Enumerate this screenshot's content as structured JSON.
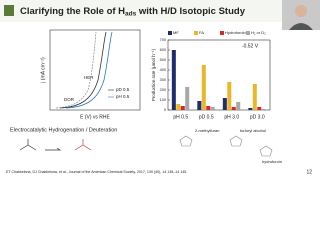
{
  "header": {
    "title_parts": [
      "Clarifying the Role of H",
      "ads",
      " with H/D Isotopic Study"
    ]
  },
  "left_plot": {
    "y_label": "j (mA cm⁻²)",
    "x_label": "E (V) vs RHE",
    "curve_labels": [
      "HER",
      "DOR"
    ],
    "legend": [
      "pD 0.5",
      "pH 0.5"
    ]
  },
  "bar_chart": {
    "type": "bar",
    "y_label": "Production rate (μmol h⁻¹)",
    "annotation": "-0.52 V",
    "categories": [
      "pH 0.5",
      "pD 0.5",
      "pH 3.0",
      "pD 3.0"
    ],
    "series": [
      {
        "name": "MF",
        "color": "#1f2d6e",
        "values": [
          600,
          90,
          120,
          20
        ]
      },
      {
        "name": "FA",
        "color": "#e8b82a",
        "values": [
          60,
          450,
          280,
          260
        ]
      },
      {
        "name": "Hydrofuroin",
        "color": "#d62a2a",
        "values": [
          40,
          40,
          30,
          30
        ]
      },
      {
        "name": "H₂ or D₂",
        "color": "#a8a8a8",
        "values": [
          230,
          30,
          80,
          10
        ]
      }
    ],
    "ylim": [
      0,
      700
    ],
    "yticks": [
      0,
      100,
      200,
      300,
      400,
      500,
      600,
      700
    ]
  },
  "scheme": {
    "caption": "Electrocatalytic Hydrogenation / Deuteration",
    "products": [
      "2-methylfuran",
      "furfuryl alcohol",
      "hydrofuroin"
    ]
  },
  "footer": {
    "citation": "ET Chakkelona, DJ Chakkelona, et al., Journal of the American Chemical Society, 2017, 139 (40), 14 138–14 145.",
    "page": "12"
  }
}
